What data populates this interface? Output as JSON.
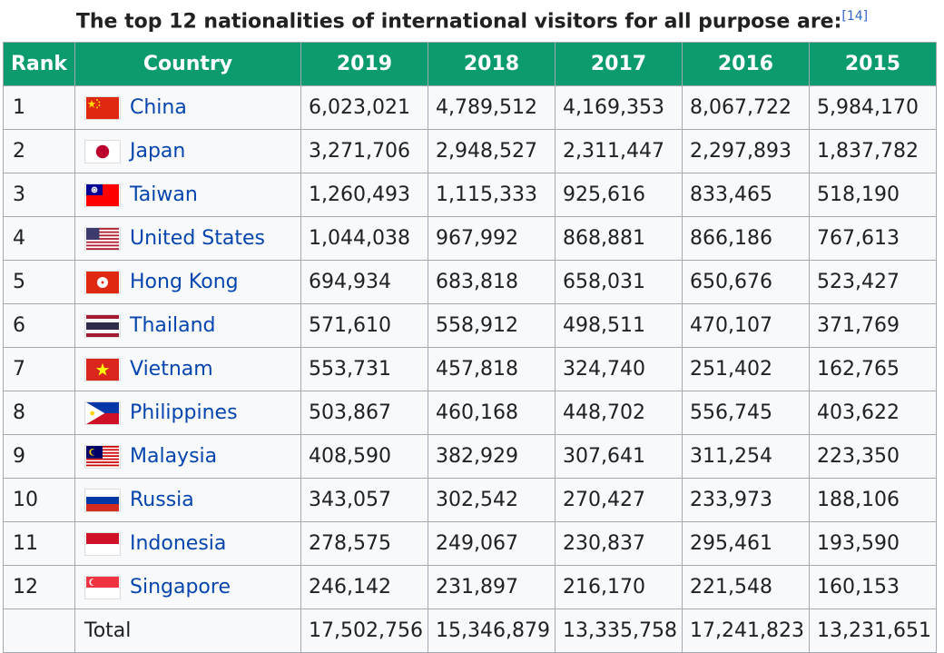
{
  "caption": {
    "text": "The top 12 nationalities of international visitors for all purpose are:",
    "ref": "[14]"
  },
  "headers": [
    "Rank",
    "Country",
    "2019",
    "2018",
    "2017",
    "2016",
    "2015"
  ],
  "rows": [
    {
      "rank": "1",
      "country": "China",
      "flag": "china-flag",
      "values": [
        "6,023,021",
        "4,789,512",
        "4,169,353",
        "8,067,722",
        "5,984,170"
      ]
    },
    {
      "rank": "2",
      "country": "Japan",
      "flag": "japan-flag",
      "values": [
        "3,271,706",
        "2,948,527",
        "2,311,447",
        "2,297,893",
        "1,837,782"
      ]
    },
    {
      "rank": "3",
      "country": "Taiwan",
      "flag": "taiwan-flag",
      "values": [
        "1,260,493",
        "1,115,333",
        "925,616",
        "833,465",
        "518,190"
      ]
    },
    {
      "rank": "4",
      "country": "United States",
      "flag": "united-states-flag",
      "values": [
        "1,044,038",
        "967,992",
        "868,881",
        "866,186",
        "767,613"
      ]
    },
    {
      "rank": "5",
      "country": "Hong Kong",
      "flag": "hong-kong-flag",
      "values": [
        "694,934",
        "683,818",
        "658,031",
        "650,676",
        "523,427"
      ]
    },
    {
      "rank": "6",
      "country": "Thailand",
      "flag": "thailand-flag",
      "values": [
        "571,610",
        "558,912",
        "498,511",
        "470,107",
        "371,769"
      ]
    },
    {
      "rank": "7",
      "country": "Vietnam",
      "flag": "vietnam-flag",
      "values": [
        "553,731",
        "457,818",
        "324,740",
        "251,402",
        "162,765"
      ]
    },
    {
      "rank": "8",
      "country": "Philippines",
      "flag": "philippines-flag",
      "values": [
        "503,867",
        "460,168",
        "448,702",
        "556,745",
        "403,622"
      ]
    },
    {
      "rank": "9",
      "country": "Malaysia",
      "flag": "malaysia-flag",
      "values": [
        "408,590",
        "382,929",
        "307,641",
        "311,254",
        "223,350"
      ]
    },
    {
      "rank": "10",
      "country": "Russia",
      "flag": "russia-flag",
      "values": [
        "343,057",
        "302,542",
        "270,427",
        "233,973",
        "188,106"
      ]
    },
    {
      "rank": "11",
      "country": "Indonesia",
      "flag": "indonesia-flag",
      "values": [
        "278,575",
        "249,067",
        "230,837",
        "295,461",
        "193,590"
      ]
    },
    {
      "rank": "12",
      "country": "Singapore",
      "flag": "singapore-flag",
      "values": [
        "246,142",
        "231,897",
        "216,170",
        "221,548",
        "160,153"
      ]
    }
  ],
  "total": {
    "label": "Total",
    "values": [
      "17,502,756",
      "15,346,879",
      "13,335,758",
      "17,241,823",
      "13,231,651"
    ]
  },
  "colors": {
    "header_bg": "#0c9b6f",
    "link": "#0645ad",
    "border": "#a2a9b1"
  }
}
